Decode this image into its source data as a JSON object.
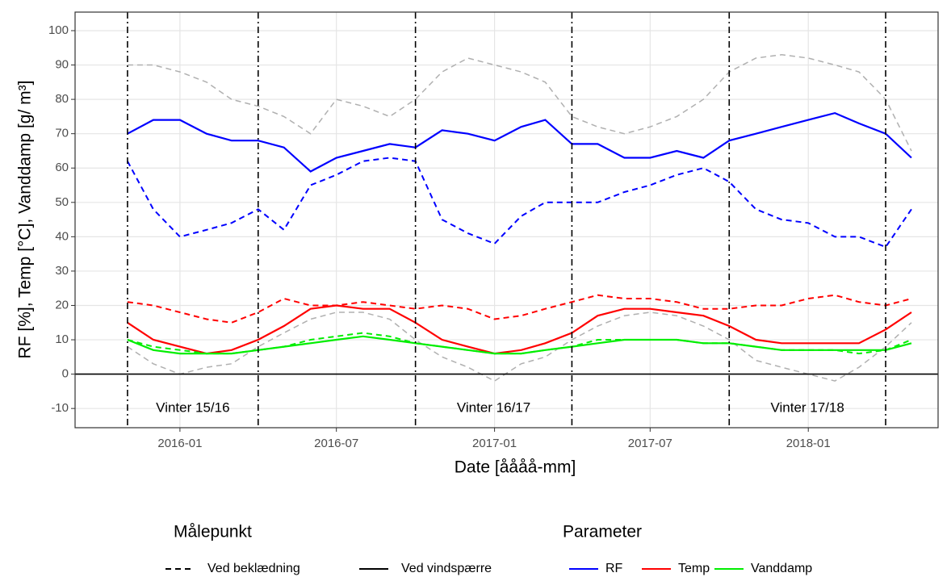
{
  "chart_data": {
    "type": "line",
    "xlabel": "Date [åååå-mm]",
    "ylabel": "RF [%], Temp [°C], Vanddamp [g/ m³]",
    "x": [
      "2015-11",
      "2015-12",
      "2016-01",
      "2016-02",
      "2016-03",
      "2016-04",
      "2016-05",
      "2016-06",
      "2016-07",
      "2016-08",
      "2016-09",
      "2016-10",
      "2016-11",
      "2016-12",
      "2017-01",
      "2017-02",
      "2017-03",
      "2017-04",
      "2017-05",
      "2017-06",
      "2017-07",
      "2017-08",
      "2017-09",
      "2017-10",
      "2017-11",
      "2017-12",
      "2018-01",
      "2018-02",
      "2018-03",
      "2018-04",
      "2018-05"
    ],
    "xlim": [
      "2015-09",
      "2018-06"
    ],
    "xticks": [
      "2016-01",
      "2016-07",
      "2017-01",
      "2017-07",
      "2018-01"
    ],
    "ylim": [
      -15.6,
      105.4
    ],
    "yticks": [
      -10,
      0,
      10,
      20,
      30,
      40,
      50,
      60,
      70,
      80,
      90,
      100
    ],
    "grid": true,
    "hline": 0,
    "vlines": [
      "2015-11",
      "2016-04",
      "2016-10",
      "2017-04",
      "2017-10",
      "2018-04"
    ],
    "annotations": [
      "Vinter 15/16",
      "Vinter 16/17",
      "Vinter 17/18"
    ],
    "series": [
      {
        "color": "#b0b0b0",
        "dash": "dashed",
        "width": 1.5,
        "values": [
          90,
          90,
          88,
          85,
          80,
          78,
          75,
          70,
          80,
          78,
          75,
          80,
          88,
          92,
          90,
          88,
          85,
          75,
          72,
          70,
          72,
          75,
          80,
          88,
          92,
          93,
          92,
          90,
          88,
          80,
          65
        ]
      },
      {
        "color": "#b0b0b0",
        "dash": "dashed",
        "width": 1.5,
        "values": [
          8,
          3,
          0,
          2,
          3,
          8,
          12,
          16,
          18,
          18,
          16,
          10,
          5,
          2,
          -2,
          3,
          5,
          10,
          14,
          17,
          18,
          17,
          14,
          10,
          4,
          2,
          0,
          -2,
          2,
          8,
          15
        ]
      },
      {
        "color": "#0000ff",
        "dash": "dashed",
        "width": 2,
        "values": [
          62,
          48,
          40,
          42,
          44,
          48,
          42,
          55,
          58,
          62,
          63,
          62,
          45,
          41,
          38,
          46,
          50,
          50,
          50,
          53,
          55,
          58,
          60,
          56,
          48,
          45,
          44,
          40,
          40,
          37,
          48
        ]
      },
      {
        "color": "#0000ff",
        "dash": "solid",
        "width": 2.2,
        "values": [
          70,
          74,
          74,
          70,
          68,
          68,
          66,
          59,
          63,
          65,
          67,
          66,
          71,
          70,
          68,
          72,
          74,
          67,
          67,
          63,
          63,
          65,
          63,
          68,
          70,
          72,
          74,
          76,
          73,
          70,
          63
        ]
      },
      {
        "color": "#ff0000",
        "dash": "dashed",
        "width": 2,
        "values": [
          21,
          20,
          18,
          16,
          15,
          18,
          22,
          20,
          20,
          21,
          20,
          19,
          20,
          19,
          16,
          17,
          19,
          21,
          23,
          22,
          22,
          21,
          19,
          19,
          20,
          20,
          22,
          23,
          21,
          20,
          22
        ]
      },
      {
        "color": "#ff0000",
        "dash": "solid",
        "width": 2.2,
        "values": [
          15,
          10,
          8,
          6,
          7,
          10,
          14,
          19,
          20,
          19,
          19,
          15,
          10,
          8,
          6,
          7,
          9,
          12,
          17,
          19,
          19,
          18,
          17,
          14,
          10,
          9,
          9,
          9,
          9,
          13,
          18
        ]
      },
      {
        "color": "#00ee00",
        "dash": "dashed",
        "width": 2,
        "values": [
          10,
          8,
          7,
          6,
          6,
          7,
          8,
          10,
          11,
          12,
          11,
          9,
          8,
          7,
          6,
          6,
          7,
          8,
          10,
          10,
          10,
          10,
          9,
          9,
          8,
          7,
          7,
          7,
          6,
          7,
          10
        ]
      },
      {
        "color": "#00ee00",
        "dash": "solid",
        "width": 2.2,
        "values": [
          10,
          7,
          6,
          6,
          6,
          7,
          8,
          9,
          10,
          11,
          10,
          9,
          8,
          7,
          6,
          6,
          7,
          8,
          9,
          10,
          10,
          10,
          9,
          9,
          8,
          7,
          7,
          7,
          7,
          7,
          9
        ]
      }
    ],
    "legends": [
      {
        "title": "Målepunkt",
        "entries": [
          {
            "label": "Ved beklædning",
            "color": "#000000",
            "dash": "dashed"
          },
          {
            "label": "Ved vindspærre",
            "color": "#000000",
            "dash": "solid"
          }
        ]
      },
      {
        "title": "Parameter",
        "entries": [
          {
            "label": "RF",
            "color": "#0000ff",
            "dash": "solid"
          },
          {
            "label": "Temp",
            "color": "#ff0000",
            "dash": "solid"
          },
          {
            "label": "Vanddamp",
            "color": "#00ee00",
            "dash": "solid"
          }
        ]
      }
    ]
  }
}
